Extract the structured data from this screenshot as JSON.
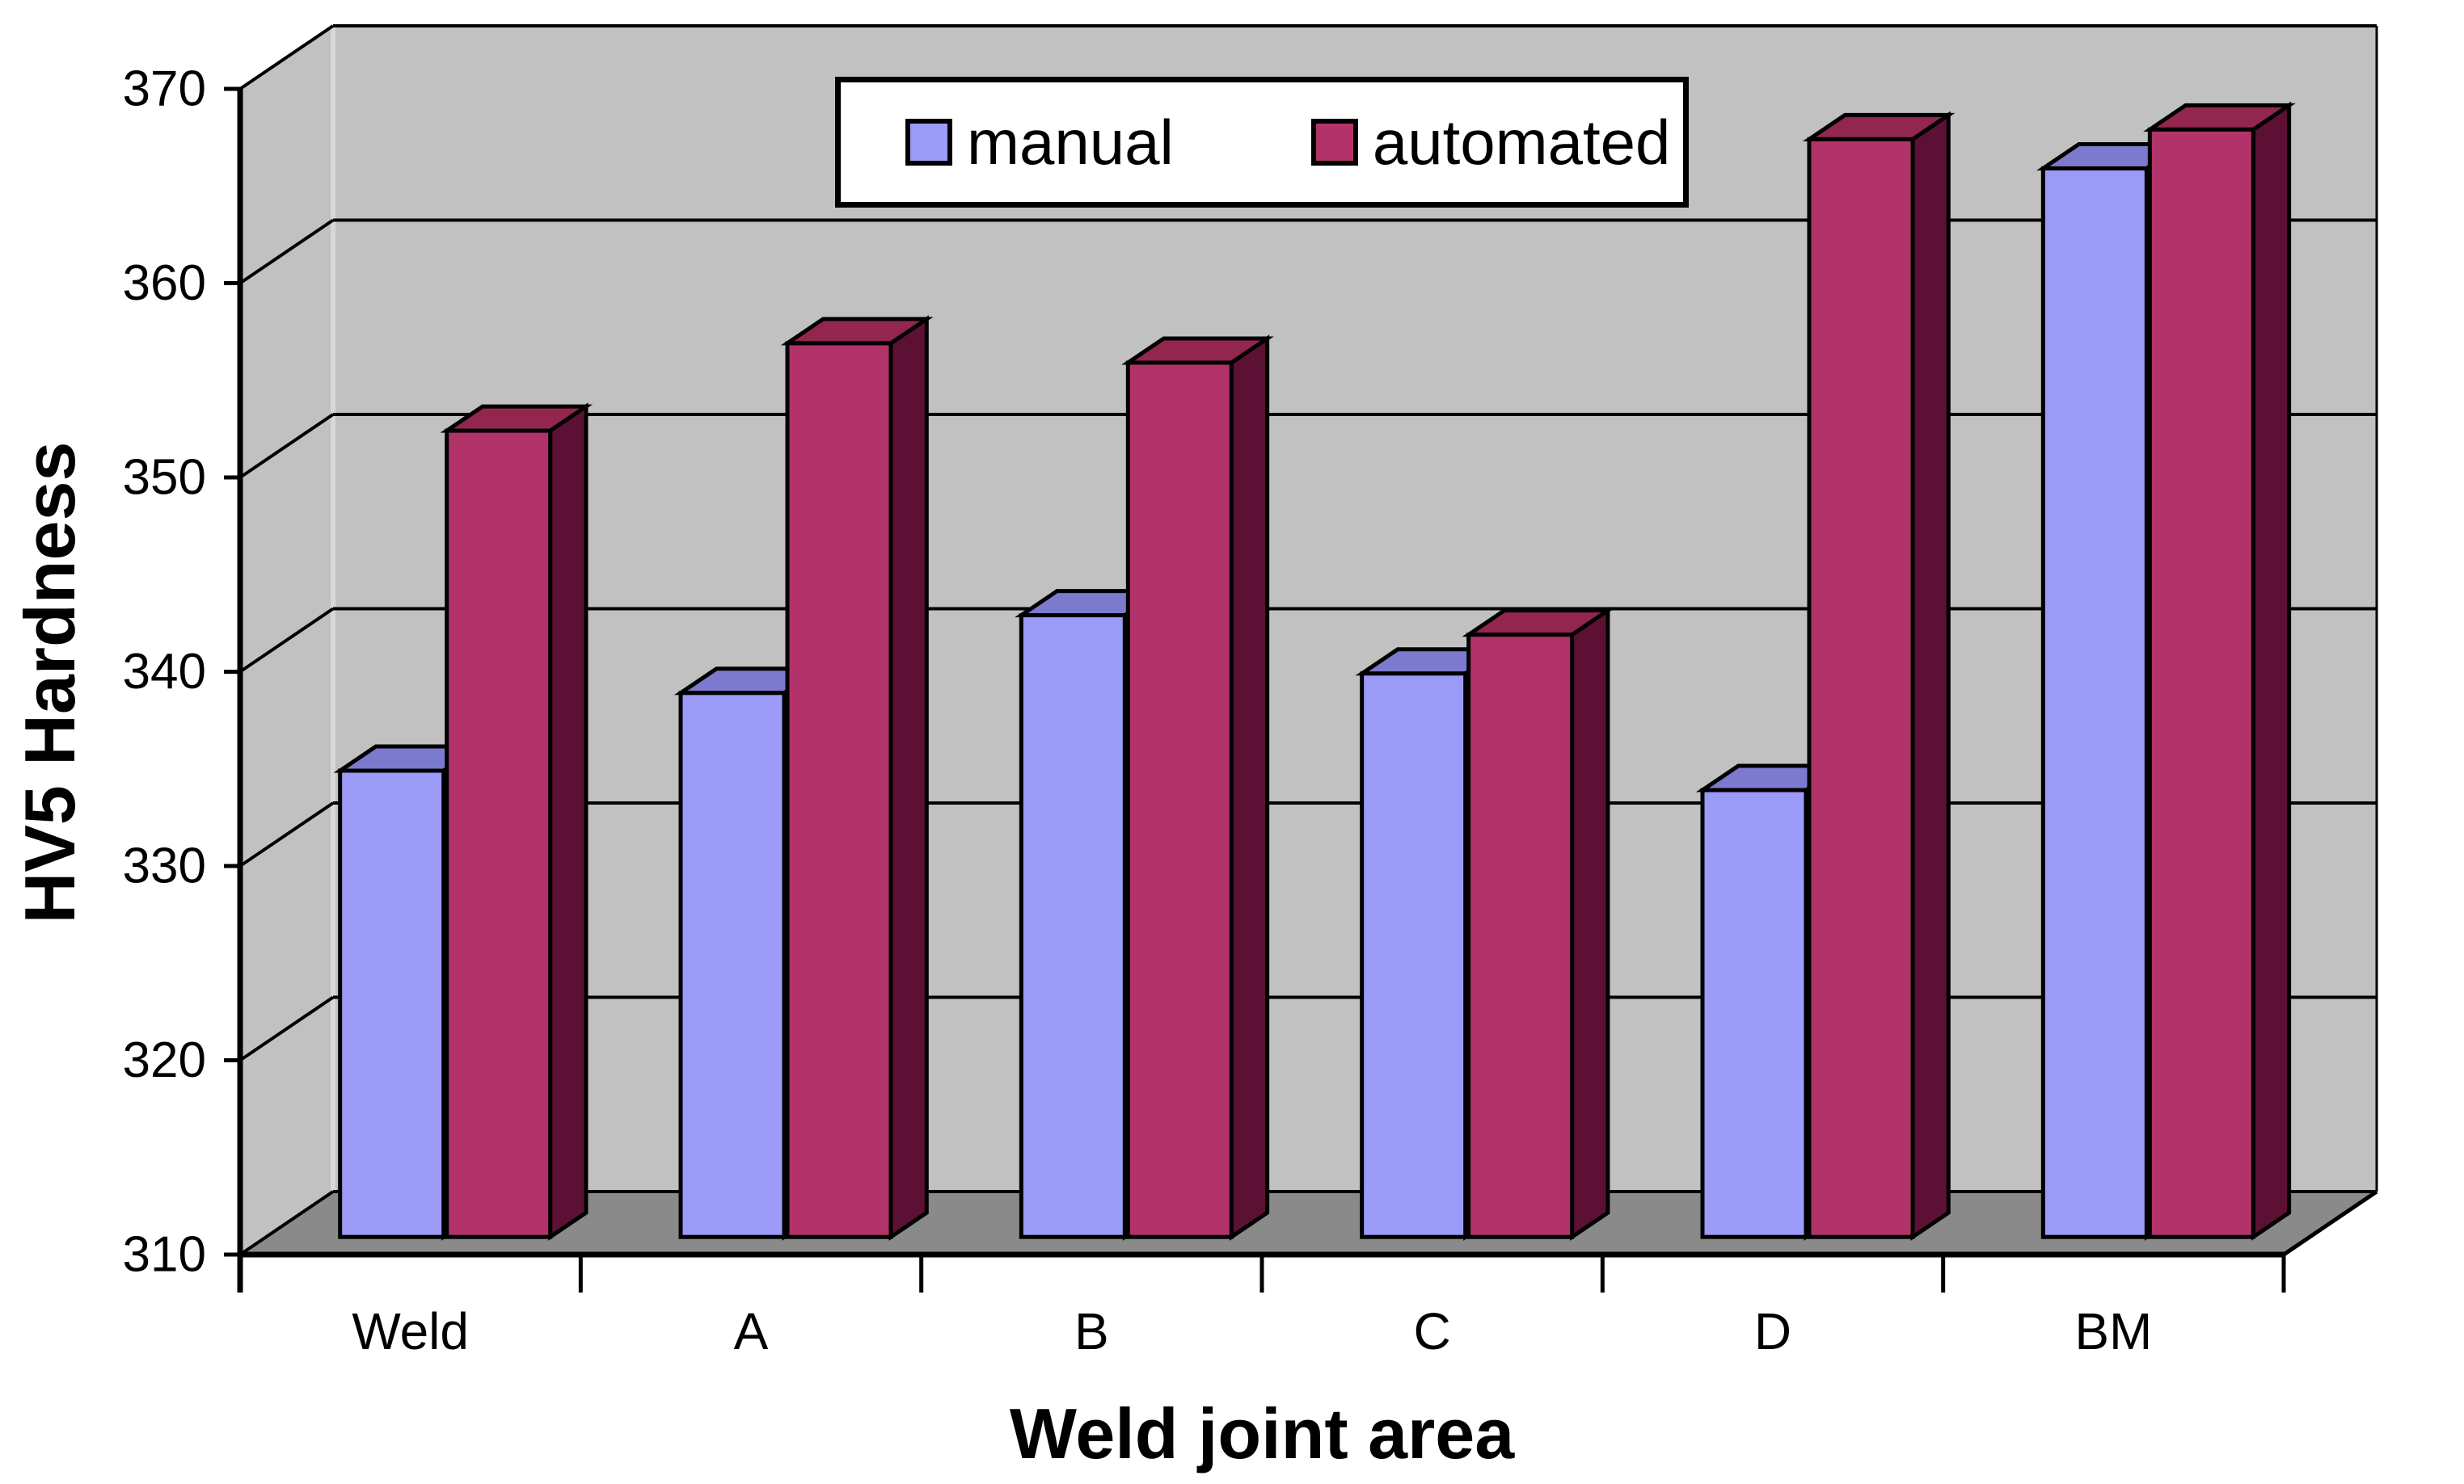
{
  "chart_data": {
    "type": "bar",
    "projection": "3d-clustered-column",
    "title": "",
    "xlabel": "Weld joint area",
    "ylabel": "HV5 Hardness",
    "categories": [
      "Weld",
      "A",
      "B",
      "C",
      "D",
      "BM"
    ],
    "series": [
      {
        "name": "manual",
        "values": [
          334,
          338,
          342,
          339,
          333,
          365
        ],
        "front_color": "#9B9AF7",
        "top_color": "#7B7ACE",
        "side_color": "#6A69B8"
      },
      {
        "name": "automated",
        "values": [
          351.5,
          356,
          355,
          341,
          366.5,
          367
        ],
        "front_color": "#B13369",
        "top_color": "#93264F",
        "side_color": "#5C1134"
      }
    ],
    "ylim": [
      310,
      370
    ],
    "yticks": [
      310,
      320,
      330,
      340,
      350,
      360,
      370
    ],
    "ytick_step": 10,
    "grid": true,
    "legend_position": "top-center",
    "colors": {
      "wall": "#C1C1C1",
      "wall_corner_highlight": "#D8D8D8",
      "floor": "#8A8A8A",
      "background": "#FFFFFF",
      "gridline": "#000000",
      "outline": "#000000",
      "text": "#000000"
    }
  }
}
